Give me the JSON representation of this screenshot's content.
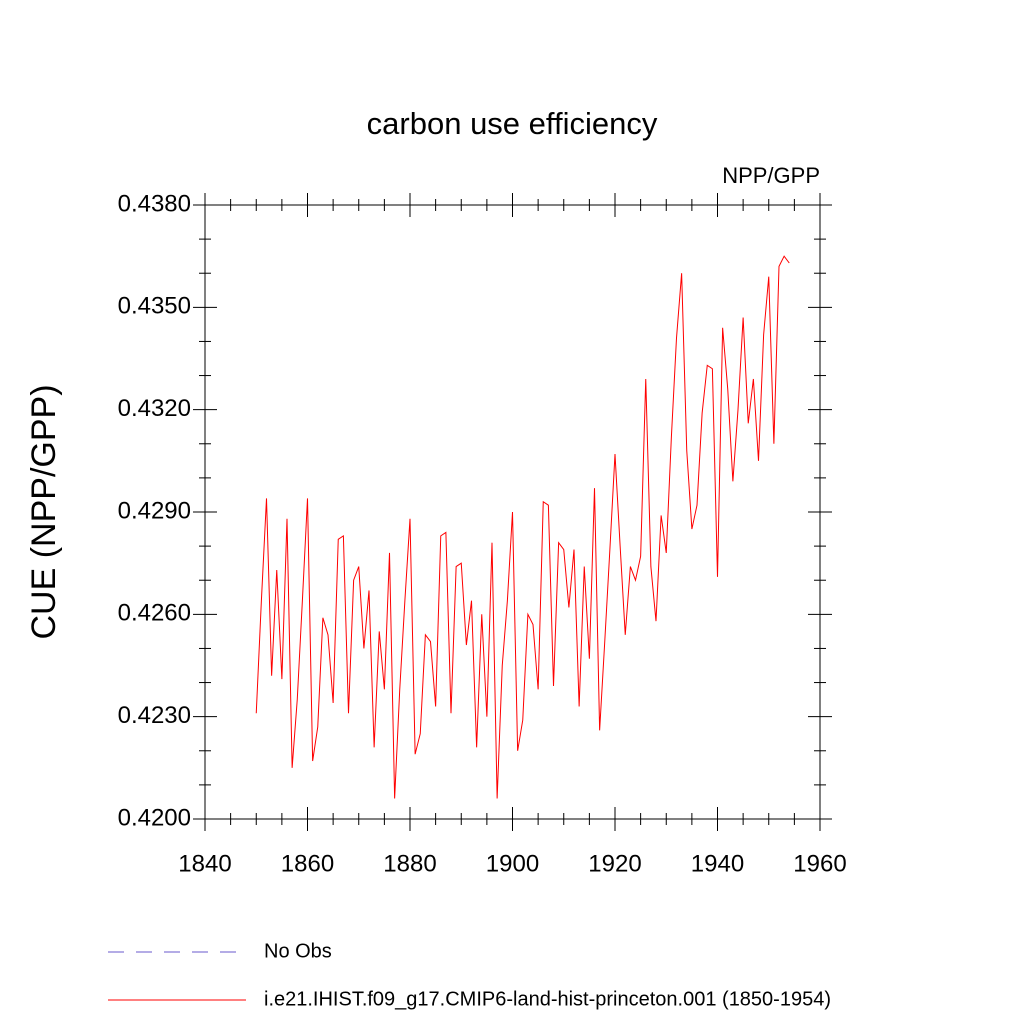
{
  "chart_data": {
    "type": "line",
    "title": "carbon use efficiency",
    "subtitle": "NPP/GPP",
    "ylabel": "CUE  (NPP/GPP)",
    "x": [
      1850,
      1851,
      1852,
      1853,
      1854,
      1855,
      1856,
      1857,
      1858,
      1859,
      1860,
      1861,
      1862,
      1863,
      1864,
      1865,
      1866,
      1867,
      1868,
      1869,
      1870,
      1871,
      1872,
      1873,
      1874,
      1875,
      1876,
      1877,
      1878,
      1879,
      1880,
      1881,
      1882,
      1883,
      1884,
      1885,
      1886,
      1887,
      1888,
      1889,
      1890,
      1891,
      1892,
      1893,
      1894,
      1895,
      1896,
      1897,
      1898,
      1899,
      1900,
      1901,
      1902,
      1903,
      1904,
      1905,
      1906,
      1907,
      1908,
      1909,
      1910,
      1911,
      1912,
      1913,
      1914,
      1915,
      1916,
      1917,
      1918,
      1919,
      1920,
      1921,
      1922,
      1923,
      1924,
      1925,
      1926,
      1927,
      1928,
      1929,
      1930,
      1931,
      1932,
      1933,
      1934,
      1935,
      1936,
      1937,
      1938,
      1939,
      1940,
      1941,
      1942,
      1943,
      1944,
      1945,
      1946,
      1947,
      1948,
      1949,
      1950,
      1951,
      1952,
      1953,
      1954
    ],
    "series": [
      {
        "name": "No Obs",
        "color": "#6a5acd",
        "dashed": true,
        "values": [
          null,
          null,
          null,
          null,
          null,
          null,
          null,
          null,
          null,
          null,
          null,
          null,
          null,
          null,
          null,
          null,
          null,
          null,
          null,
          null,
          null,
          null,
          null,
          null,
          null,
          null,
          null,
          null,
          null,
          null,
          null,
          null,
          null,
          null,
          null,
          null,
          null,
          null,
          null,
          null,
          null,
          null,
          null,
          null,
          null,
          null,
          null,
          null,
          null,
          null,
          null,
          null,
          null,
          null,
          null,
          null,
          null,
          null,
          null,
          null,
          null,
          null,
          null,
          null,
          null,
          null,
          null,
          null,
          null,
          null,
          null,
          null,
          null,
          null,
          null,
          null,
          null,
          null,
          null,
          null,
          null,
          null,
          null,
          null,
          null,
          null,
          null,
          null,
          null,
          null,
          null,
          null,
          null,
          null,
          null,
          null,
          null,
          null,
          null,
          null,
          null,
          null,
          null,
          null,
          null
        ]
      },
      {
        "name": "i.e21.IHIST.f09_g17.CMIP6-land-hist-princeton.001 (1850-1954)",
        "color": "#ff0000",
        "dashed": false,
        "values": [
          0.4231,
          0.4264,
          0.4294,
          0.4242,
          0.4273,
          0.4241,
          0.4288,
          0.4215,
          0.4235,
          0.4264,
          0.4294,
          0.4217,
          0.4227,
          0.4259,
          0.4254,
          0.4234,
          0.4282,
          0.4283,
          0.4231,
          0.427,
          0.4274,
          0.425,
          0.4267,
          0.4221,
          0.4255,
          0.4238,
          0.4278,
          0.4206,
          0.4238,
          0.4264,
          0.4288,
          0.4219,
          0.4225,
          0.4254,
          0.4252,
          0.4233,
          0.4283,
          0.4284,
          0.4231,
          0.4274,
          0.4275,
          0.4251,
          0.4264,
          0.4221,
          0.426,
          0.423,
          0.4281,
          0.4206,
          0.4245,
          0.4264,
          0.429,
          0.422,
          0.4229,
          0.426,
          0.4257,
          0.4238,
          0.4293,
          0.4292,
          0.4239,
          0.4281,
          0.4279,
          0.4262,
          0.4279,
          0.4233,
          0.4274,
          0.4247,
          0.4297,
          0.4226,
          0.4252,
          0.4279,
          0.4307,
          0.428,
          0.4254,
          0.4274,
          0.427,
          0.4277,
          0.4329,
          0.4274,
          0.4258,
          0.4289,
          0.4278,
          0.4312,
          0.4341,
          0.436,
          0.4308,
          0.4285,
          0.4292,
          0.4319,
          0.4333,
          0.4332,
          0.4271,
          0.4344,
          0.4326,
          0.4299,
          0.432,
          0.4347,
          0.4316,
          0.4329,
          0.4305,
          0.4342,
          0.4359,
          0.431,
          0.4362,
          0.4365,
          0.4363
        ]
      }
    ],
    "xlim": [
      1840,
      1960
    ],
    "xticks": [
      1840,
      1860,
      1880,
      1900,
      1920,
      1940,
      1960
    ],
    "ylim": [
      0.42,
      0.438
    ],
    "yticks": [
      {
        "value": 0.42,
        "label": "0.4200"
      },
      {
        "value": 0.423,
        "label": "0.4230"
      },
      {
        "value": 0.426,
        "label": "0.4260"
      },
      {
        "value": 0.429,
        "label": "0.4290"
      },
      {
        "value": 0.432,
        "label": "0.4320"
      },
      {
        "value": 0.435,
        "label": "0.4350"
      },
      {
        "value": 0.438,
        "label": "0.4380"
      }
    ],
    "grid": false
  }
}
